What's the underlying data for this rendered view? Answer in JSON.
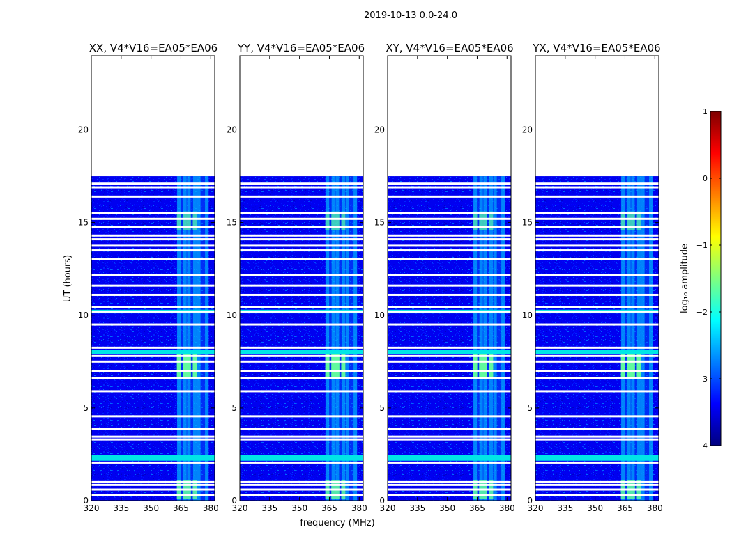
{
  "figure_title": "2019-10-13 0.0-24.0",
  "chart_data": {
    "type": "heatmap",
    "xlabel": "frequency (MHz)",
    "ylabel": "UT (hours)",
    "xlim": [
      320,
      382
    ],
    "ylim": [
      0,
      24
    ],
    "xticks": [
      "320",
      "335",
      "350",
      "365",
      "380"
    ],
    "xtick_values": [
      320,
      335,
      350,
      365,
      380
    ],
    "yticks": [
      "0",
      "5",
      "10",
      "15",
      "20"
    ],
    "ytick_values": [
      0,
      5,
      10,
      15,
      20
    ],
    "panels": [
      {
        "title": "XX, V4*V16=EA05*EA06",
        "polarization": "XX"
      },
      {
        "title": "YY, V4*V16=EA05*EA06",
        "polarization": "YY"
      },
      {
        "title": "XY, V4*V16=EA05*EA06",
        "polarization": "XY"
      },
      {
        "title": "YX, V4*V16=EA05*EA06",
        "polarization": "YX"
      }
    ],
    "data_coverage_ut": [
      0,
      17.5
    ],
    "flagged_rows_ut": [
      0.3,
      0.6,
      0.85,
      1.0,
      2.05,
      3.3,
      3.45,
      3.85,
      4.55,
      5.9,
      6.6,
      7.0,
      7.5,
      7.8,
      8.25,
      9.5,
      10.2,
      10.45,
      11.1,
      11.6,
      12.15,
      13.05,
      13.5,
      13.75,
      14.1,
      14.3,
      14.75,
      15.2,
      15.5,
      16.4,
      16.9,
      17.1
    ],
    "bright_rows_ut": [
      [
        2.15,
        2.45
      ],
      [
        7.9,
        8.15
      ],
      [
        10.1,
        10.3
      ]
    ],
    "rfi_channels_mhz": [
      364,
      367,
      369,
      372,
      374,
      378
    ],
    "rfi_band_mhz": [
      363,
      379
    ],
    "colorbar": {
      "label": "log₁₀ amplitude",
      "min": -4,
      "max": 1,
      "ticks": [
        "1",
        "0",
        "−1",
        "−2",
        "−3",
        "−4"
      ],
      "tick_values": [
        1,
        0,
        -1,
        -2,
        -3,
        -4
      ],
      "colormap": "jet",
      "colors": [
        "#00007f",
        "#0000ff",
        "#007fff",
        "#00ffff",
        "#7fff7f",
        "#ffff00",
        "#ff7f00",
        "#ff0000",
        "#7f0000"
      ]
    }
  }
}
